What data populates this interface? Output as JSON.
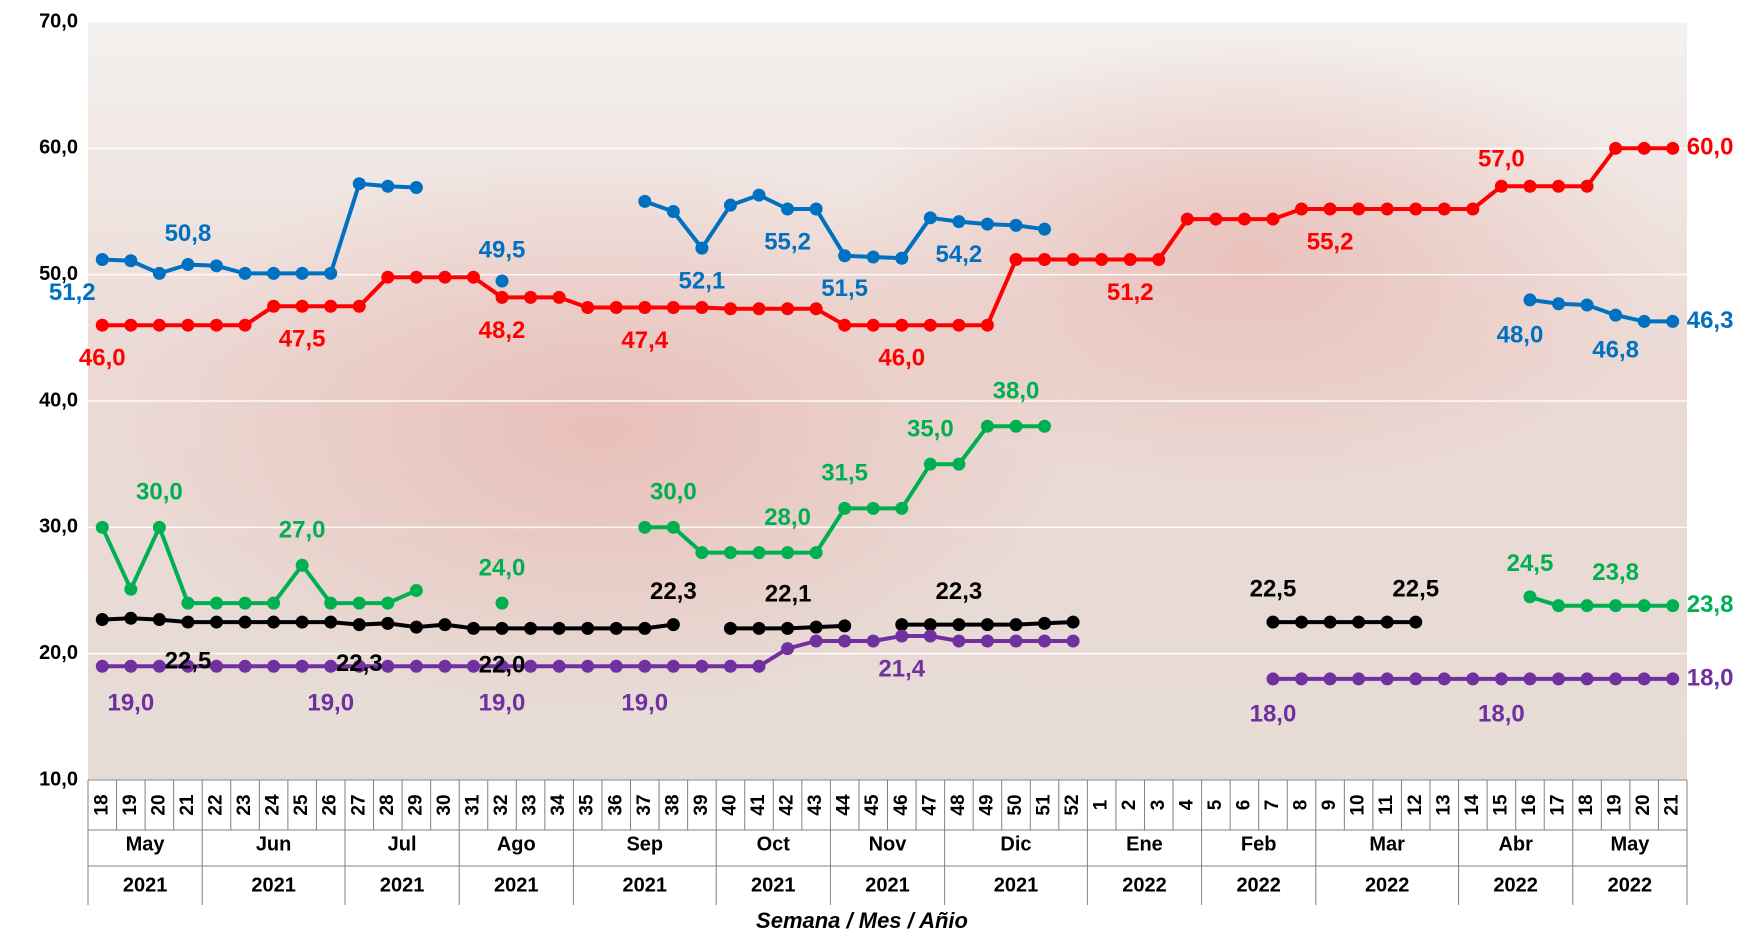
{
  "chart_data": {
    "type": "line",
    "x_title": "Semana / Mes / Añio",
    "groups": [
      {
        "month": "May",
        "year": "2021",
        "weeks": [
          "18",
          "19",
          "20",
          "21"
        ]
      },
      {
        "month": "Jun",
        "year": "2021",
        "weeks": [
          "22",
          "23",
          "24",
          "25",
          "26"
        ]
      },
      {
        "month": "Jul",
        "year": "2021",
        "weeks": [
          "27",
          "28",
          "29",
          "30"
        ]
      },
      {
        "month": "Ago",
        "year": "2021",
        "weeks": [
          "31",
          "32",
          "33",
          "34"
        ]
      },
      {
        "month": "Sep",
        "year": "2021",
        "weeks": [
          "35",
          "36",
          "37",
          "38",
          "39"
        ]
      },
      {
        "month": "Oct",
        "year": "2021",
        "weeks": [
          "40",
          "41",
          "42",
          "43"
        ]
      },
      {
        "month": "Nov",
        "year": "2021",
        "weeks": [
          "44",
          "45",
          "46",
          "47"
        ]
      },
      {
        "month": "Dic",
        "year": "2021",
        "weeks": [
          "48",
          "49",
          "50",
          "51",
          "52"
        ]
      },
      {
        "month": "Ene",
        "year": "2022",
        "weeks": [
          "1",
          "2",
          "3",
          "4"
        ]
      },
      {
        "month": "Feb",
        "year": "2022",
        "weeks": [
          "5",
          "6",
          "7",
          "8"
        ]
      },
      {
        "month": "Mar",
        "year": "2022",
        "weeks": [
          "9",
          "10",
          "11",
          "12",
          "13"
        ]
      },
      {
        "month": "Abr",
        "year": "2022",
        "weeks": [
          "14",
          "15",
          "16",
          "17"
        ]
      },
      {
        "month": "May",
        "year": "2022",
        "weeks": [
          "18",
          "19",
          "20",
          "21"
        ]
      }
    ],
    "ylim": [
      10,
      70
    ],
    "yticks": [
      {
        "value": 10,
        "label": "10,0"
      },
      {
        "value": 20,
        "label": "20,0"
      },
      {
        "value": 30,
        "label": "30,0"
      },
      {
        "value": 40,
        "label": "40,0"
      },
      {
        "value": 50,
        "label": "50,0"
      },
      {
        "value": 60,
        "label": "60,0"
      },
      {
        "value": 70,
        "label": "70,0"
      }
    ],
    "series": [
      {
        "color": "#ff0000",
        "values": [
          46,
          46,
          46,
          46,
          46,
          46,
          47.5,
          47.5,
          47.5,
          47.5,
          49.8,
          49.8,
          49.8,
          49.8,
          48.2,
          48.2,
          48.2,
          47.4,
          47.4,
          47.4,
          47.4,
          47.4,
          47.3,
          47.3,
          47.3,
          47.3,
          46,
          46,
          46,
          46,
          46,
          46,
          51.2,
          51.2,
          51.2,
          51.2,
          51.2,
          51.2,
          54.4,
          54.4,
          54.4,
          54.4,
          55.2,
          55.2,
          55.2,
          55.2,
          55.2,
          55.2,
          55.2,
          57,
          57,
          57,
          57,
          60,
          60,
          60
        ],
        "value_labels": [
          "46,0",
          null,
          null,
          null,
          null,
          null,
          null,
          "47,5",
          null,
          null,
          null,
          null,
          null,
          null,
          "48,2",
          null,
          null,
          null,
          null,
          "47,4",
          null,
          null,
          null,
          null,
          null,
          null,
          null,
          null,
          "46,0",
          null,
          null,
          null,
          null,
          null,
          null,
          null,
          "51,2",
          null,
          null,
          null,
          null,
          null,
          null,
          "55,2",
          null,
          null,
          null,
          null,
          null,
          "57,0",
          null,
          null,
          null,
          null,
          null,
          "60,0"
        ]
      },
      {
        "color": "#0070c0",
        "values": [
          51.2,
          51.1,
          50.1,
          50.8,
          50.7,
          50.1,
          50.1,
          50.1,
          50.1,
          57.2,
          57.0,
          56.9,
          null,
          null,
          49.5,
          null,
          null,
          null,
          null,
          55.8,
          55.0,
          52.1,
          55.5,
          56.3,
          55.2,
          55.2,
          51.5,
          51.4,
          51.3,
          54.5,
          54.2,
          54.0,
          53.9,
          53.6,
          null,
          null,
          null,
          null,
          null,
          null,
          null,
          null,
          null,
          null,
          null,
          null,
          null,
          null,
          null,
          null,
          48.0,
          47.7,
          47.6,
          46.8,
          46.3,
          46.3
        ],
        "value_labels": [
          "51,2",
          null,
          null,
          "50,8",
          null,
          null,
          null,
          null,
          null,
          null,
          null,
          null,
          null,
          null,
          "49,5",
          null,
          null,
          null,
          null,
          null,
          null,
          "52,1",
          null,
          null,
          "55,2",
          null,
          "51,5",
          null,
          null,
          null,
          "54,2",
          null,
          null,
          null,
          null,
          null,
          null,
          null,
          null,
          null,
          null,
          null,
          null,
          null,
          null,
          null,
          null,
          null,
          null,
          null,
          "48,0",
          null,
          null,
          "46,8",
          null,
          "46,3"
        ]
      },
      {
        "color": "#00b050",
        "values": [
          30,
          25.1,
          30,
          24,
          24,
          24,
          24,
          27,
          24,
          24,
          24,
          25,
          null,
          null,
          24,
          null,
          null,
          null,
          null,
          30,
          30,
          28,
          28,
          28,
          28,
          28,
          31.5,
          31.5,
          31.5,
          35,
          35,
          38,
          38,
          38,
          null,
          null,
          null,
          null,
          null,
          null,
          null,
          null,
          null,
          null,
          null,
          null,
          null,
          null,
          null,
          null,
          24.5,
          23.8,
          23.8,
          23.8,
          23.8,
          23.8
        ],
        "value_labels": [
          null,
          null,
          "30,0",
          null,
          null,
          null,
          null,
          "27,0",
          null,
          null,
          null,
          null,
          null,
          null,
          "24,0",
          null,
          null,
          null,
          null,
          null,
          "30,0",
          null,
          null,
          null,
          "28,0",
          null,
          "31,5",
          null,
          null,
          "35,0",
          null,
          null,
          "38,0",
          null,
          null,
          null,
          null,
          null,
          null,
          null,
          null,
          null,
          null,
          null,
          null,
          null,
          null,
          null,
          null,
          null,
          "24,5",
          null,
          null,
          "23,8",
          null,
          "23,8"
        ]
      },
      {
        "color": "#000000",
        "values": [
          22.7,
          22.8,
          22.7,
          22.5,
          22.5,
          22.5,
          22.5,
          22.5,
          22.5,
          22.3,
          22.4,
          22.1,
          22.3,
          22.0,
          22.0,
          22.0,
          22.0,
          22.0,
          22.0,
          22.0,
          22.3,
          null,
          22.0,
          22.0,
          22.0,
          22.1,
          22.2,
          null,
          22.3,
          22.3,
          22.3,
          22.3,
          22.3,
          22.4,
          22.5,
          null,
          null,
          null,
          null,
          null,
          null,
          22.5,
          22.5,
          22.5,
          22.5,
          22.5,
          22.5,
          null,
          null,
          null,
          null,
          null,
          null,
          null,
          null,
          null
        ],
        "value_labels": [
          null,
          null,
          null,
          "22,5",
          null,
          null,
          null,
          null,
          null,
          "22,3",
          null,
          null,
          null,
          null,
          "22,0",
          null,
          null,
          null,
          null,
          null,
          "22,3",
          null,
          null,
          null,
          null,
          "22,1",
          null,
          null,
          null,
          null,
          "22,3",
          null,
          null,
          null,
          null,
          null,
          null,
          null,
          null,
          null,
          null,
          "22,5",
          null,
          null,
          null,
          null,
          "22,5",
          null,
          null,
          null,
          null,
          null,
          null,
          null,
          null,
          null
        ]
      },
      {
        "color": "#7030a0",
        "values": [
          19,
          19,
          19,
          19,
          19,
          19,
          19,
          19,
          19,
          19,
          19,
          19,
          19,
          19,
          19,
          19,
          19,
          19,
          19,
          19,
          19,
          19,
          19,
          19,
          20.4,
          21,
          21,
          21,
          21.4,
          21.4,
          21,
          21,
          21,
          21,
          21,
          null,
          null,
          null,
          null,
          null,
          null,
          18,
          18,
          18,
          18,
          18,
          18,
          18,
          18,
          18,
          18,
          18,
          18,
          18,
          18,
          18
        ],
        "value_labels": [
          null,
          "19,0",
          null,
          null,
          null,
          null,
          null,
          null,
          "19,0",
          null,
          null,
          null,
          null,
          null,
          "19,0",
          null,
          null,
          null,
          null,
          "19,0",
          null,
          null,
          null,
          null,
          null,
          null,
          null,
          null,
          "21,4",
          null,
          null,
          null,
          null,
          null,
          null,
          null,
          null,
          null,
          null,
          null,
          null,
          "18,0",
          null,
          null,
          null,
          null,
          null,
          null,
          null,
          "18,0",
          null,
          null,
          null,
          null,
          null,
          "18,0"
        ]
      }
    ]
  }
}
